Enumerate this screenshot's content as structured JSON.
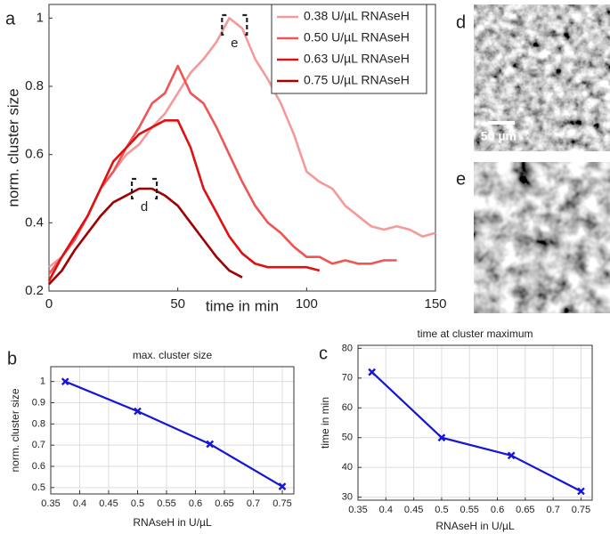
{
  "chart_data": [
    {
      "type": "line",
      "panel": "a",
      "xlabel": "time in min",
      "ylabel": "norm. cluster size",
      "xlim": [
        0,
        150
      ],
      "ylim": [
        0.2,
        1.04
      ],
      "xticks": [
        0,
        50,
        100,
        150
      ],
      "yticks": [
        0.2,
        0.4,
        0.6,
        0.8,
        1
      ],
      "grid": false,
      "legend": "upper right",
      "x": [
        0,
        5,
        10,
        15,
        20,
        25,
        30,
        35,
        40,
        45,
        50,
        55,
        60,
        65,
        70,
        75,
        80,
        85,
        90,
        95,
        100,
        105,
        110,
        115,
        120,
        125,
        130,
        135,
        140,
        145,
        150
      ],
      "series": [
        {
          "name": "0.38 U/µL RNAseH",
          "color": "#f49a9a",
          "values": [
            0.27,
            0.3,
            0.36,
            0.42,
            0.5,
            0.55,
            0.6,
            0.63,
            0.68,
            0.72,
            0.78,
            0.84,
            0.88,
            0.93,
            1.0,
            0.97,
            0.88,
            0.82,
            0.75,
            0.66,
            0.55,
            0.52,
            0.5,
            0.45,
            0.42,
            0.39,
            0.38,
            0.39,
            0.38,
            0.36,
            0.37
          ]
        },
        {
          "name": "0.50 U/µL RNAseH",
          "color": "#ee5555",
          "values": [
            0.25,
            0.3,
            0.35,
            0.42,
            0.5,
            0.55,
            0.62,
            0.68,
            0.75,
            0.78,
            0.86,
            0.78,
            0.75,
            0.68,
            0.6,
            0.52,
            0.45,
            0.4,
            0.37,
            0.33,
            0.3,
            0.3,
            0.28,
            0.29,
            0.28,
            0.28,
            0.29,
            0.29,
            null,
            null,
            null
          ]
        },
        {
          "name": "0.63 U/µL RNAseH",
          "color": "#dd1111",
          "values": [
            0.23,
            0.3,
            0.36,
            0.42,
            0.5,
            0.58,
            0.62,
            0.66,
            0.68,
            0.7,
            0.7,
            0.62,
            0.5,
            0.43,
            0.36,
            0.31,
            0.28,
            0.27,
            0.27,
            0.27,
            0.27,
            0.26,
            null,
            null,
            null,
            null,
            null,
            null,
            null,
            null,
            null
          ]
        },
        {
          "name": "0.75 U/µL RNAseH",
          "color": "#a00000",
          "values": [
            0.22,
            0.26,
            0.32,
            0.37,
            0.42,
            0.46,
            0.48,
            0.5,
            0.5,
            0.48,
            0.45,
            0.4,
            0.35,
            0.3,
            0.26,
            0.24,
            null,
            null,
            null,
            null,
            null,
            null,
            null,
            null,
            null,
            null,
            null,
            null,
            null,
            null,
            null
          ]
        }
      ],
      "annotations": [
        {
          "label": "e",
          "x": 72,
          "y": 0.98
        },
        {
          "label": "d",
          "x": 37,
          "y": 0.5
        }
      ]
    },
    {
      "type": "line",
      "panel": "b",
      "title": "max. cluster size",
      "xlabel": "RNAseH in U/µL",
      "ylabel": "norm. cluster size",
      "xlim": [
        0.35,
        0.77
      ],
      "ylim": [
        0.47,
        1.07
      ],
      "xticks": [
        0.35,
        0.4,
        0.45,
        0.5,
        0.55,
        0.6,
        0.65,
        0.7,
        0.75
      ],
      "yticks": [
        0.5,
        0.6,
        0.7,
        0.8,
        0.9,
        1
      ],
      "grid": true,
      "x": [
        0.375,
        0.5,
        0.625,
        0.75
      ],
      "series": [
        {
          "color": "#1515d8",
          "marker": "x",
          "values": [
            1,
            0.86,
            0.705,
            0.505
          ]
        }
      ]
    },
    {
      "type": "line",
      "panel": "c",
      "title": "time at cluster maximum",
      "xlabel": "RNAseH in U/µL",
      "ylabel": "time in min",
      "xlim": [
        0.35,
        0.77
      ],
      "ylim": [
        29,
        81
      ],
      "xticks": [
        0.35,
        0.4,
        0.45,
        0.5,
        0.55,
        0.6,
        0.65,
        0.7,
        0.75
      ],
      "yticks": [
        30,
        40,
        50,
        60,
        70,
        80
      ],
      "grid": true,
      "x": [
        0.375,
        0.5,
        0.625,
        0.75
      ],
      "series": [
        {
          "color": "#1515d8",
          "marker": "x",
          "values": [
            72,
            50,
            44,
            32
          ]
        }
      ]
    }
  ],
  "images": [
    {
      "panel": "d",
      "scale_bar": "50 µm"
    },
    {
      "panel": "e"
    }
  ]
}
